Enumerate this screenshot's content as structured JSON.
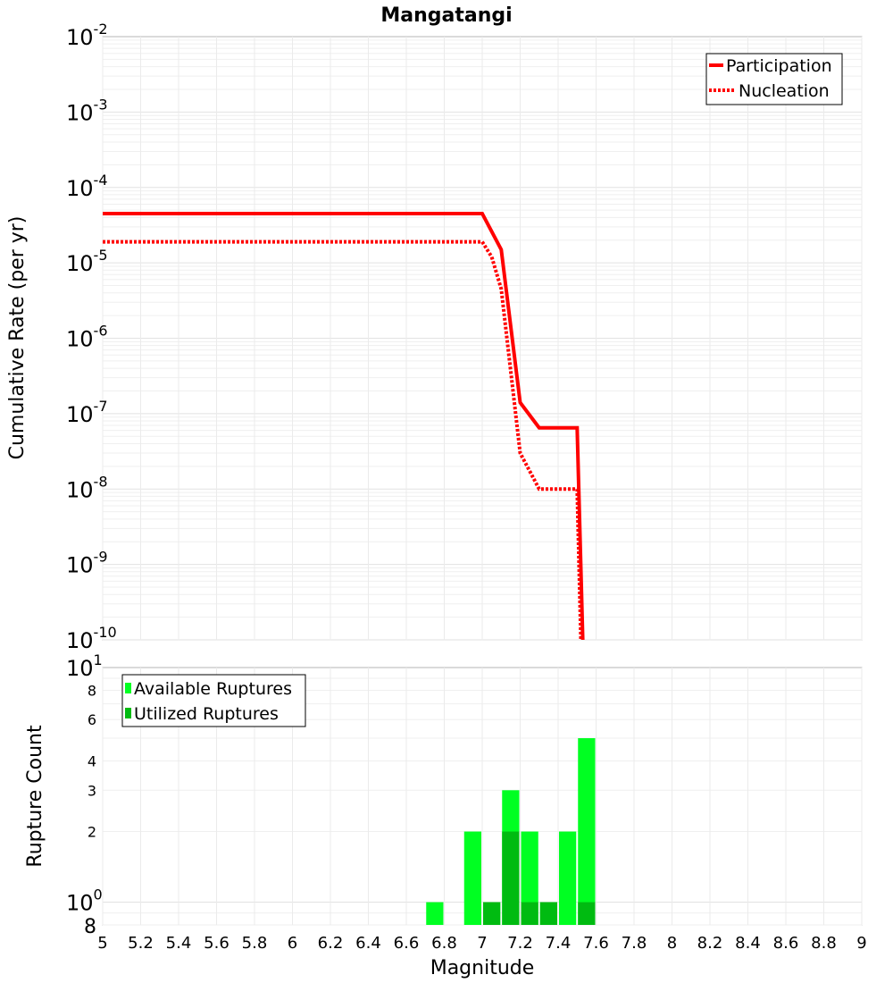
{
  "chart_data": [
    {
      "type": "line",
      "title": "Mangatangi",
      "xlabel": "",
      "ylabel": "Cumulative Rate (per yr)",
      "xlim": [
        5,
        9
      ],
      "ylim": [
        1e-10,
        0.01
      ],
      "yscale": "log",
      "grid": true,
      "legend_position": "top-right",
      "y_tick_mantissa": "10",
      "y_tick_exponents": [
        "-10",
        "-9",
        "-8",
        "-7",
        "-6",
        "-5",
        "-4",
        "-3",
        "-2"
      ],
      "series": [
        {
          "name": "Participation",
          "style": "solid",
          "color": "#ff0000",
          "x": [
            5.0,
            7.0,
            7.1,
            7.2,
            7.3,
            7.5,
            7.53
          ],
          "y": [
            4.5e-05,
            4.5e-05,
            1.5e-05,
            1.4e-07,
            6.5e-08,
            6.5e-08,
            1e-10
          ]
        },
        {
          "name": "Nucleation",
          "style": "dotted",
          "color": "#ff0000",
          "x": [
            5.0,
            7.0,
            7.05,
            7.1,
            7.2,
            7.3,
            7.5,
            7.52
          ],
          "y": [
            1.9e-05,
            1.9e-05,
            1.2e-05,
            4.5e-06,
            3e-08,
            1e-08,
            1e-08,
            1e-10
          ]
        }
      ]
    },
    {
      "type": "bar",
      "xlabel": "Magnitude",
      "ylabel": "Rupture Count",
      "xlim": [
        5,
        9
      ],
      "ylim": [
        0.8,
        10
      ],
      "yscale": "log",
      "grid": true,
      "legend_position": "top-left",
      "bin_width": 0.1,
      "x_ticks": [
        "5",
        "5.2",
        "5.4",
        "5.6",
        "5.8",
        "6",
        "6.2",
        "6.4",
        "6.6",
        "6.8",
        "7",
        "7.2",
        "7.4",
        "7.6",
        "7.8",
        "8",
        "8.2",
        "8.4",
        "8.6",
        "8.8",
        "9"
      ],
      "y_ticks_minor": [
        "8",
        "6",
        "4",
        "3",
        "2"
      ],
      "y_major_labels": [
        {
          "value": 10,
          "mantissa": "10",
          "exponent": "1"
        },
        {
          "value": 1,
          "mantissa": "10",
          "exponent": "0"
        }
      ],
      "y_bottom_label": "8",
      "series": [
        {
          "name": "Available Ruptures",
          "color": "#00ff22",
          "bin_centers": [
            6.75,
            6.95,
            7.05,
            7.15,
            7.25,
            7.35,
            7.45,
            7.55
          ],
          "values": [
            1,
            2,
            1,
            3,
            2,
            1,
            2,
            5
          ]
        },
        {
          "name": "Utilized Ruptures",
          "color": "#00bb11",
          "bin_centers": [
            7.05,
            7.15,
            7.25,
            7.35,
            7.55
          ],
          "values": [
            1,
            2,
            1,
            1,
            1
          ]
        }
      ]
    }
  ]
}
